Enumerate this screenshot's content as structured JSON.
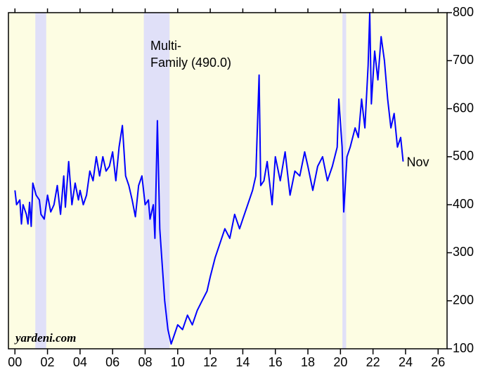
{
  "chart_data": {
    "type": "line",
    "annotation": [
      "Multi-",
      "Family (490.0)"
    ],
    "end_label": "Nov",
    "source": "yardeni.com",
    "color": "#0000ff",
    "background": "#fdfde3",
    "shade_color": "#e0e0f8",
    "shaded_periods": [
      [
        2001.25,
        2001.92
      ],
      [
        2007.92,
        2009.5
      ],
      [
        2020.12,
        2020.35
      ]
    ],
    "xlim": [
      1999.6,
      2026.55
    ],
    "ylim": [
      100,
      800
    ],
    "xticks": [
      {
        "value": 2000,
        "label": "00"
      },
      {
        "value": 2002,
        "label": "02"
      },
      {
        "value": 2004,
        "label": "04"
      },
      {
        "value": 2006,
        "label": "06"
      },
      {
        "value": 2008,
        "label": "08"
      },
      {
        "value": 2010,
        "label": "10"
      },
      {
        "value": 2012,
        "label": "12"
      },
      {
        "value": 2014,
        "label": "14"
      },
      {
        "value": 2016,
        "label": "16"
      },
      {
        "value": 2018,
        "label": "18"
      },
      {
        "value": 2020,
        "label": "20"
      },
      {
        "value": 2022,
        "label": "22"
      },
      {
        "value": 2024,
        "label": "24"
      },
      {
        "value": 2026,
        "label": "26"
      }
    ],
    "yticks": [
      100,
      200,
      300,
      400,
      500,
      600,
      700,
      800
    ],
    "x": [
      2000.0,
      2000.1,
      2000.3,
      2000.4,
      2000.5,
      2000.7,
      2000.8,
      2000.9,
      2001.0,
      2001.1,
      2001.3,
      2001.5,
      2001.6,
      2001.8,
      2002.0,
      2002.2,
      2002.4,
      2002.6,
      2002.8,
      2003.0,
      2003.1,
      2003.3,
      2003.5,
      2003.7,
      2003.9,
      2004.0,
      2004.2,
      2004.4,
      2004.6,
      2004.8,
      2005.0,
      2005.2,
      2005.4,
      2005.6,
      2005.8,
      2006.0,
      2006.2,
      2006.4,
      2006.6,
      2006.8,
      2007.0,
      2007.2,
      2007.4,
      2007.6,
      2007.8,
      2008.0,
      2008.2,
      2008.3,
      2008.5,
      2008.6,
      2008.75,
      2008.9,
      2009.0,
      2009.2,
      2009.4,
      2009.6,
      2009.8,
      2010.0,
      2010.3,
      2010.6,
      2010.9,
      2011.2,
      2011.5,
      2011.8,
      2012.0,
      2012.3,
      2012.6,
      2012.9,
      2013.2,
      2013.5,
      2013.8,
      2014.0,
      2014.3,
      2014.6,
      2014.8,
      2015.0,
      2015.1,
      2015.3,
      2015.5,
      2015.8,
      2016.0,
      2016.3,
      2016.6,
      2016.9,
      2017.2,
      2017.5,
      2017.8,
      2018.0,
      2018.3,
      2018.6,
      2018.9,
      2019.2,
      2019.5,
      2019.8,
      2019.9,
      2020.1,
      2020.2,
      2020.4,
      2020.6,
      2020.9,
      2021.1,
      2021.3,
      2021.5,
      2021.7,
      2021.8,
      2021.9,
      2022.1,
      2022.3,
      2022.5,
      2022.7,
      2022.9,
      2023.1,
      2023.3,
      2023.5,
      2023.7,
      2023.85
    ],
    "values": [
      430,
      400,
      410,
      360,
      400,
      380,
      360,
      405,
      355,
      445,
      420,
      410,
      380,
      370,
      420,
      385,
      400,
      440,
      380,
      460,
      395,
      490,
      400,
      445,
      410,
      430,
      400,
      420,
      470,
      450,
      500,
      460,
      500,
      470,
      480,
      510,
      450,
      520,
      565,
      460,
      440,
      410,
      375,
      440,
      460,
      400,
      410,
      370,
      400,
      330,
      575,
      350,
      300,
      200,
      140,
      110,
      130,
      150,
      140,
      170,
      150,
      180,
      200,
      220,
      250,
      290,
      320,
      350,
      330,
      380,
      350,
      370,
      400,
      430,
      460,
      670,
      440,
      450,
      490,
      400,
      500,
      450,
      510,
      420,
      470,
      460,
      510,
      480,
      430,
      480,
      500,
      450,
      480,
      520,
      620,
      520,
      385,
      500,
      520,
      560,
      540,
      620,
      560,
      690,
      800,
      610,
      720,
      660,
      750,
      700,
      620,
      560,
      590,
      520,
      540,
      490
    ]
  }
}
